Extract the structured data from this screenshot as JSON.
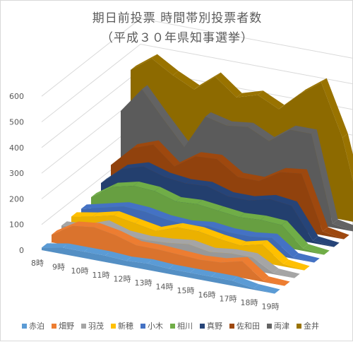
{
  "title": "期日前投票 時間帯別投票者数",
  "subtitle": "（平成３０年県知事選挙）",
  "chart_data": {
    "type": "area",
    "subtype": "3d-area",
    "categories": [
      "8時",
      "9時",
      "10時",
      "11時",
      "12時",
      "13時",
      "14時",
      "15時",
      "16時",
      "17時",
      "18時",
      "19時"
    ],
    "yticks": [
      "0",
      "100",
      "200",
      "300",
      "400",
      "500",
      "600"
    ],
    "ylim": [
      0,
      600
    ],
    "legend_position": "bottom",
    "series": [
      {
        "name": "赤泊",
        "color": "#5b9bd5",
        "values": [
          10,
          25,
          25,
          25,
          20,
          25,
          20,
          20,
          20,
          20,
          5,
          0
        ]
      },
      {
        "name": "畑野",
        "color": "#ed7d31",
        "values": [
          30,
          80,
          90,
          75,
          50,
          50,
          45,
          40,
          45,
          65,
          5,
          0
        ]
      },
      {
        "name": "羽茂",
        "color": "#a5a5a5",
        "values": [
          35,
          40,
          70,
          45,
          40,
          45,
          55,
          40,
          50,
          50,
          5,
          0
        ]
      },
      {
        "name": "新穂",
        "color": "#ffc000",
        "values": [
          40,
          55,
          75,
          60,
          45,
          75,
          75,
          60,
          50,
          70,
          10,
          0
        ]
      },
      {
        "name": "小木",
        "color": "#4472c4",
        "values": [
          40,
          60,
          80,
          75,
          60,
          55,
          65,
          55,
          55,
          65,
          5,
          0
        ]
      },
      {
        "name": "相川",
        "color": "#70ad47",
        "values": [
          55,
          110,
          130,
          125,
          100,
          105,
          95,
          85,
          90,
          85,
          10,
          0
        ]
      },
      {
        "name": "真野",
        "color": "#264478",
        "values": [
          80,
          150,
          175,
          150,
          140,
          145,
          120,
          120,
          140,
          130,
          10,
          0
        ]
      },
      {
        "name": "佐和田",
        "color": "#9e480e",
        "values": [
          120,
          200,
          230,
          160,
          215,
          220,
          165,
          165,
          215,
          225,
          15,
          0
        ]
      },
      {
        "name": "両津",
        "color": "#636363",
        "values": [
          300,
          400,
          300,
          205,
          340,
          320,
          330,
          290,
          350,
          350,
          15,
          0
        ]
      },
      {
        "name": "金井",
        "color": "#997300",
        "values": [
          430,
          490,
          440,
          400,
          465,
          400,
          425,
          385,
          460,
          520,
          320,
          0
        ]
      }
    ]
  }
}
